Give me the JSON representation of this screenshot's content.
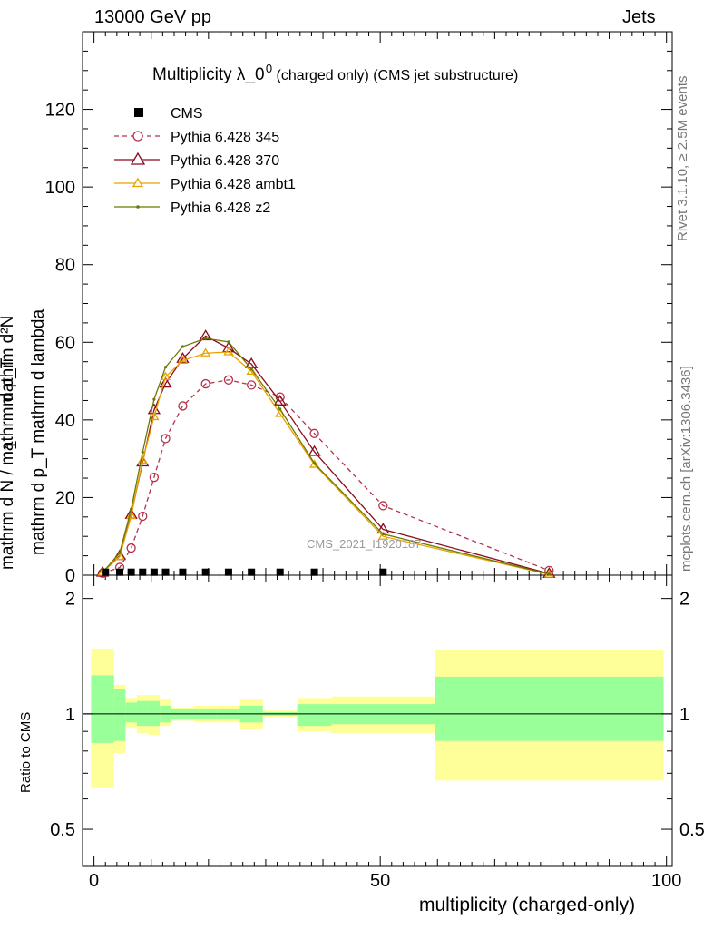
{
  "header": {
    "left": "13000 GeV pp",
    "right": "Jets"
  },
  "side_labels": {
    "rivet": "Rivet 3.1.10, ≥ 2.5M events",
    "mcplots": "mcplots.cern.ch [arXiv:1306.3436]"
  },
  "main_ylabel": {
    "numerator": "mathrm d²N",
    "denominator": "mathrm d p_T mathrm d lambda",
    "fraction_denominator": "mathrm d N / mathrm d p_T",
    "one": "1"
  },
  "ratio_ylabel": "Ratio to CMS",
  "xlabel": "multiplicity (charged-only)",
  "watermark": "CMS_2021_I1920187",
  "colors": {
    "cms": "#000000",
    "p345": "#b5314a",
    "p370": "#8b0a1e",
    "ambt1": "#e8a200",
    "z2": "#6b7a00",
    "band_outer": "#ffff99",
    "band_inner": "#99ff99"
  },
  "chart_data": [
    {
      "type": "line",
      "title": "Multiplicity λ_0⁰ (charged only) (CMS jet substructure)",
      "title_main": "Multiplicity λ_0",
      "title_sup": "0",
      "title_rest": "(charged only) (CMS jet substructure)",
      "xlim": [
        -2,
        101
      ],
      "ylim": [
        0,
        140
      ],
      "yticks": [
        0,
        20,
        40,
        60,
        80,
        100,
        120
      ],
      "legend_position": "top-left",
      "cms": {
        "name": "CMS",
        "x": [
          2,
          4.5,
          6.5,
          8.5,
          10.5,
          12.5,
          15.5,
          19.5,
          23.5,
          27.5,
          32.5,
          38.5,
          50.5
        ],
        "y": [
          0.3,
          0.3,
          0.3,
          0.3,
          0.3,
          0.3,
          0.3,
          0.3,
          0.3,
          0.3,
          0.3,
          0.3,
          0.3
        ]
      },
      "series": [
        {
          "name": "Pythia 6.428 345",
          "key": "p345",
          "style": "dashed",
          "marker": "circle",
          "x": [
            1.5,
            4.5,
            6.5,
            8.5,
            10.5,
            12.5,
            15.5,
            19.5,
            23.5,
            27.5,
            32.5,
            38.5,
            50.5,
            79.5
          ],
          "y": [
            0.5,
            2.0,
            7.0,
            15.2,
            25.2,
            35.2,
            43.6,
            49.3,
            50.3,
            49.0,
            45.9,
            36.5,
            17.9,
            1.2
          ]
        },
        {
          "name": "Pythia 6.428 370",
          "key": "p370",
          "style": "solid",
          "marker": "triangle",
          "x": [
            1.5,
            4.5,
            6.5,
            8.5,
            10.5,
            12.5,
            15.5,
            19.5,
            23.5,
            27.5,
            32.5,
            38.5,
            50.5,
            79.5
          ],
          "y": [
            0.7,
            5.0,
            15.6,
            29.1,
            42.6,
            49.4,
            55.8,
            61.6,
            58.5,
            54.4,
            44.8,
            31.8,
            11.8,
            0.4
          ]
        },
        {
          "name": "Pythia 6.428 ambt1",
          "key": "ambt1",
          "style": "solid",
          "marker": "triangle-small",
          "x": [
            1.5,
            4.5,
            6.5,
            8.5,
            10.5,
            12.5,
            15.5,
            19.5,
            23.5,
            27.5,
            32.5,
            38.5,
            50.5,
            79.5
          ],
          "y": [
            0.7,
            4.8,
            15.3,
            29.6,
            40.8,
            51.1,
            55.3,
            57.2,
            57.5,
            52.5,
            41.6,
            28.5,
            10.0,
            0.2
          ]
        },
        {
          "name": "Pythia 6.428 z2",
          "key": "z2",
          "style": "solid",
          "marker": "dot",
          "x": [
            1.5,
            4.5,
            6.5,
            8.5,
            10.5,
            12.5,
            15.5,
            19.5,
            23.5,
            27.5,
            32.5,
            38.5,
            50.5,
            79.5
          ],
          "y": [
            0.7,
            5.8,
            17.0,
            31.7,
            45.3,
            53.6,
            58.9,
            61.0,
            60.1,
            53.1,
            42.8,
            28.8,
            10.6,
            0.3
          ]
        }
      ]
    },
    {
      "type": "area",
      "ylabel": "Ratio to CMS",
      "xlabel": "multiplicity (charged-only)",
      "xlim": [
        -2,
        101
      ],
      "ylim": [
        0.4,
        2.3
      ],
      "yticks": [
        0.5,
        1,
        2
      ],
      "xticks": [
        0,
        50,
        100
      ],
      "reference_line": 1,
      "bins": [
        {
          "x0": -0.5,
          "x1": 3.5,
          "outer": [
            0.64,
            1.48
          ],
          "inner": [
            0.84,
            1.26
          ]
        },
        {
          "x0": 3.5,
          "x1": 5.5,
          "outer": [
            0.79,
            1.19
          ],
          "inner": [
            0.85,
            1.16
          ]
        },
        {
          "x0": 5.5,
          "x1": 7.5,
          "outer": [
            0.92,
            1.1
          ],
          "inner": [
            0.95,
            1.07
          ]
        },
        {
          "x0": 7.5,
          "x1": 9.5,
          "outer": [
            0.89,
            1.12
          ],
          "inner": [
            0.93,
            1.08
          ]
        },
        {
          "x0": 9.5,
          "x1": 11.5,
          "outer": [
            0.88,
            1.12
          ],
          "inner": [
            0.93,
            1.08
          ]
        },
        {
          "x0": 11.5,
          "x1": 13.5,
          "outer": [
            0.93,
            1.09
          ],
          "inner": [
            0.95,
            1.05
          ]
        },
        {
          "x0": 13.5,
          "x1": 17.5,
          "outer": [
            0.96,
            1.04
          ],
          "inner": [
            0.97,
            1.03
          ]
        },
        {
          "x0": 17.5,
          "x1": 21.5,
          "outer": [
            0.95,
            1.05
          ],
          "inner": [
            0.97,
            1.03
          ]
        },
        {
          "x0": 21.5,
          "x1": 25.5,
          "outer": [
            0.95,
            1.05
          ],
          "inner": [
            0.97,
            1.03
          ]
        },
        {
          "x0": 25.5,
          "x1": 29.5,
          "outer": [
            0.91,
            1.09
          ],
          "inner": [
            0.95,
            1.05
          ]
        },
        {
          "x0": 29.5,
          "x1": 35.5,
          "outer": [
            0.98,
            1.02
          ],
          "inner": [
            0.99,
            1.01
          ]
        },
        {
          "x0": 35.5,
          "x1": 41.5,
          "outer": [
            0.9,
            1.1
          ],
          "inner": [
            0.93,
            1.06
          ]
        },
        {
          "x0": 41.5,
          "x1": 59.5,
          "outer": [
            0.89,
            1.11
          ],
          "inner": [
            0.94,
            1.06
          ]
        },
        {
          "x0": 59.5,
          "x1": 99.5,
          "outer": [
            0.67,
            1.47
          ],
          "inner": [
            0.85,
            1.25
          ]
        }
      ]
    }
  ]
}
